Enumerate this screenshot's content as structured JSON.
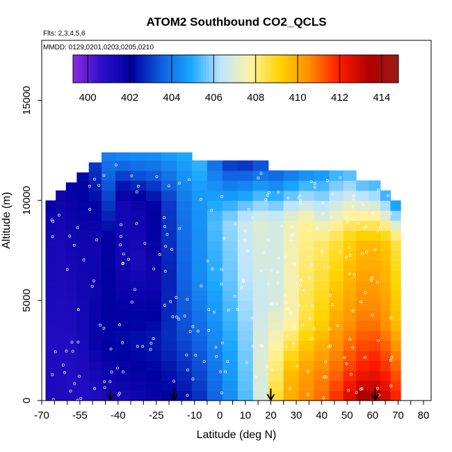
{
  "chart_data": {
    "type": "heatmap",
    "title": "ATOM2 Southbound CO2_QCLS",
    "annotations": [
      "Flts: 2,3,4,5,6",
      "MMDD: 0129,0201,0203,0205,0210"
    ],
    "xlabel": "Latitude (deg N)",
    "ylabel": "Altitude (m)",
    "xlim": [
      -70,
      83
    ],
    "ylim": [
      0,
      18000
    ],
    "x_ticks": [
      -70,
      -65,
      -60,
      -55,
      -50,
      -45,
      -40,
      -35,
      -30,
      -25,
      -20,
      -15,
      -10,
      -5,
      0,
      5,
      10,
      15,
      20,
      25,
      30,
      35,
      40,
      45,
      50,
      55,
      60,
      65,
      70,
      75,
      80
    ],
    "x_tick_labels": [
      {
        "value": -70,
        "label": "-70"
      },
      {
        "value": -55,
        "label": "-55"
      },
      {
        "value": -40,
        "label": "-40"
      },
      {
        "value": -25,
        "label": "-25"
      },
      {
        "value": -10,
        "label": "-10"
      },
      {
        "value": 0,
        "label": "0"
      },
      {
        "value": 10,
        "label": "10"
      },
      {
        "value": 20,
        "label": "20"
      },
      {
        "value": 30,
        "label": "30"
      },
      {
        "value": 40,
        "label": "40"
      },
      {
        "value": 50,
        "label": "50"
      },
      {
        "value": 60,
        "label": "60"
      },
      {
        "value": 70,
        "label": "70"
      },
      {
        "value": 80,
        "label": "80"
      }
    ],
    "y_ticks": [
      0,
      5000,
      10000,
      15000
    ],
    "y_tick_labels": [
      "0",
      "5000",
      "10000",
      "15000"
    ],
    "colorbar": {
      "range": [
        399.3,
        414.8
      ],
      "ticks": [
        400,
        402,
        404,
        406,
        408,
        410,
        412,
        414
      ],
      "tick_labels": [
        "400",
        "402",
        "404",
        "406",
        "408",
        "410",
        "412",
        "414"
      ],
      "colors": [
        "#8a2be2",
        "#2a0fc8",
        "#0000a0",
        "#1060e0",
        "#1aa6ff",
        "#bfe6ff",
        "#fff2a0",
        "#ffd400",
        "#ff8c00",
        "#ff1a00",
        "#b00000",
        "#9b1c1c"
      ]
    },
    "columns": [
      {
        "lat": -66.5,
        "top": 10000,
        "profile": [
          [
            0,
            401.2
          ],
          [
            3000,
            401.0
          ],
          [
            8000,
            401.4
          ],
          [
            10000,
            402.0
          ]
        ]
      },
      {
        "lat": -62.5,
        "top": 10500,
        "profile": [
          [
            0,
            401.1
          ],
          [
            3000,
            401.0
          ],
          [
            8000,
            401.3
          ],
          [
            10500,
            401.8
          ]
        ]
      },
      {
        "lat": -58.5,
        "top": 10900,
        "profile": [
          [
            0,
            401.0
          ],
          [
            3000,
            401.0
          ],
          [
            8000,
            401.5
          ],
          [
            10900,
            402.0
          ]
        ]
      },
      {
        "lat": -54.0,
        "top": 11400,
        "profile": [
          [
            0,
            400.9
          ],
          [
            3000,
            401.3
          ],
          [
            8000,
            401.6
          ],
          [
            11400,
            402.3
          ]
        ]
      },
      {
        "lat": -49.0,
        "top": 11900,
        "profile": [
          [
            0,
            401.0
          ],
          [
            3000,
            401.8
          ],
          [
            8000,
            401.5
          ],
          [
            11900,
            403.0
          ]
        ]
      },
      {
        "lat": -44.0,
        "top": 12400,
        "profile": [
          [
            0,
            401.2
          ],
          [
            3000,
            402.2
          ],
          [
            8000,
            402.0
          ],
          [
            11000,
            403.5
          ],
          [
            12400,
            404.2
          ]
        ]
      },
      {
        "lat": -38.0,
        "top": 12400,
        "profile": [
          [
            0,
            401.4
          ],
          [
            3000,
            402.3
          ],
          [
            7000,
            401.5
          ],
          [
            10000,
            401.5
          ],
          [
            12400,
            404.5
          ]
        ]
      },
      {
        "lat": -32.0,
        "top": 12400,
        "profile": [
          [
            0,
            401.6
          ],
          [
            3000,
            402.4
          ],
          [
            7000,
            401.2
          ],
          [
            10000,
            401.8
          ],
          [
            12400,
            404.6
          ]
        ]
      },
      {
        "lat": -26.0,
        "top": 12400,
        "profile": [
          [
            0,
            401.8
          ],
          [
            3000,
            402.5
          ],
          [
            6000,
            401.6
          ],
          [
            10000,
            402.2
          ],
          [
            12400,
            404.6
          ]
        ]
      },
      {
        "lat": -20.0,
        "top": 12400,
        "profile": [
          [
            0,
            402.0
          ],
          [
            3000,
            402.8
          ],
          [
            6000,
            402.6
          ],
          [
            10000,
            403.0
          ],
          [
            12400,
            404.8
          ]
        ]
      },
      {
        "lat": -14.0,
        "top": 12400,
        "profile": [
          [
            0,
            402.3
          ],
          [
            3000,
            403.2
          ],
          [
            6000,
            403.6
          ],
          [
            10000,
            404.0
          ],
          [
            12400,
            405.0
          ]
        ]
      },
      {
        "lat": -8.0,
        "top": 12000,
        "profile": [
          [
            0,
            402.8
          ],
          [
            3000,
            403.6
          ],
          [
            6000,
            404.4
          ],
          [
            10000,
            404.6
          ],
          [
            12000,
            405.2
          ]
        ]
      },
      {
        "lat": -2.0,
        "top": 12000,
        "profile": [
          [
            0,
            403.6
          ],
          [
            3000,
            404.3
          ],
          [
            6000,
            405.0
          ],
          [
            9000,
            405.4
          ],
          [
            12000,
            403.8
          ]
        ]
      },
      {
        "lat": 4.0,
        "top": 12000,
        "profile": [
          [
            0,
            404.4
          ],
          [
            3000,
            405.0
          ],
          [
            6000,
            405.6
          ],
          [
            9000,
            406.0
          ],
          [
            12000,
            402.8
          ]
        ]
      },
      {
        "lat": 10.0,
        "top": 12000,
        "profile": [
          [
            0,
            405.4
          ],
          [
            3000,
            405.8
          ],
          [
            6000,
            406.3
          ],
          [
            9000,
            406.6
          ],
          [
            12000,
            402.6
          ]
        ]
      },
      {
        "lat": 16.0,
        "top": 12000,
        "profile": [
          [
            0,
            406.8
          ],
          [
            2000,
            407.0
          ],
          [
            5000,
            406.6
          ],
          [
            9000,
            407.0
          ],
          [
            12000,
            403.0
          ]
        ]
      },
      {
        "lat": 22.0,
        "top": 11500,
        "profile": [
          [
            0,
            408.8
          ],
          [
            1500,
            408.2
          ],
          [
            5000,
            406.8
          ],
          [
            9000,
            406.8
          ],
          [
            11500,
            403.4
          ]
        ]
      },
      {
        "lat": 28.0,
        "top": 11500,
        "profile": [
          [
            0,
            410.0
          ],
          [
            1500,
            409.6
          ],
          [
            4000,
            407.6
          ],
          [
            9000,
            407.4
          ],
          [
            11500,
            403.8
          ]
        ]
      },
      {
        "lat": 34.0,
        "top": 11500,
        "profile": [
          [
            0,
            410.6
          ],
          [
            1500,
            410.2
          ],
          [
            4000,
            408.6
          ],
          [
            9000,
            407.8
          ],
          [
            11500,
            404.2
          ]
        ]
      },
      {
        "lat": 40.0,
        "top": 11500,
        "profile": [
          [
            0,
            411.0
          ],
          [
            1500,
            410.6
          ],
          [
            4000,
            409.2
          ],
          [
            8000,
            408.2
          ],
          [
            11500,
            404.5
          ]
        ]
      },
      {
        "lat": 46.0,
        "top": 11500,
        "profile": [
          [
            0,
            411.8
          ],
          [
            1500,
            411.0
          ],
          [
            4000,
            410.0
          ],
          [
            8000,
            408.6
          ],
          [
            11500,
            405.0
          ]
        ]
      },
      {
        "lat": 51.0,
        "top": 11500,
        "profile": [
          [
            0,
            412.8
          ],
          [
            1500,
            411.6
          ],
          [
            4000,
            410.4
          ],
          [
            8000,
            409.2
          ],
          [
            11500,
            405.2
          ]
        ]
      },
      {
        "lat": 56.0,
        "top": 11000,
        "profile": [
          [
            0,
            413.8
          ],
          [
            1500,
            412.0
          ],
          [
            4000,
            410.8
          ],
          [
            8000,
            409.6
          ],
          [
            11000,
            405.2
          ]
        ]
      },
      {
        "lat": 61.0,
        "top": 11000,
        "profile": [
          [
            0,
            413.6
          ],
          [
            1500,
            412.2
          ],
          [
            4000,
            410.8
          ],
          [
            8000,
            409.6
          ],
          [
            11000,
            405.0
          ]
        ]
      },
      {
        "lat": 65.0,
        "top": 10500,
        "profile": [
          [
            0,
            413.0
          ],
          [
            1500,
            411.8
          ],
          [
            4000,
            410.4
          ],
          [
            8000,
            409.4
          ],
          [
            10500,
            404.8
          ]
        ]
      },
      {
        "lat": 69.0,
        "top": 10000,
        "profile": [
          [
            0,
            412.0
          ],
          [
            1500,
            411.2
          ],
          [
            4000,
            409.6
          ],
          [
            8000,
            408.6
          ],
          [
            10000,
            404.4
          ]
        ]
      }
    ],
    "arrows_latitude": [
      -43,
      -18,
      20,
      61
    ]
  }
}
